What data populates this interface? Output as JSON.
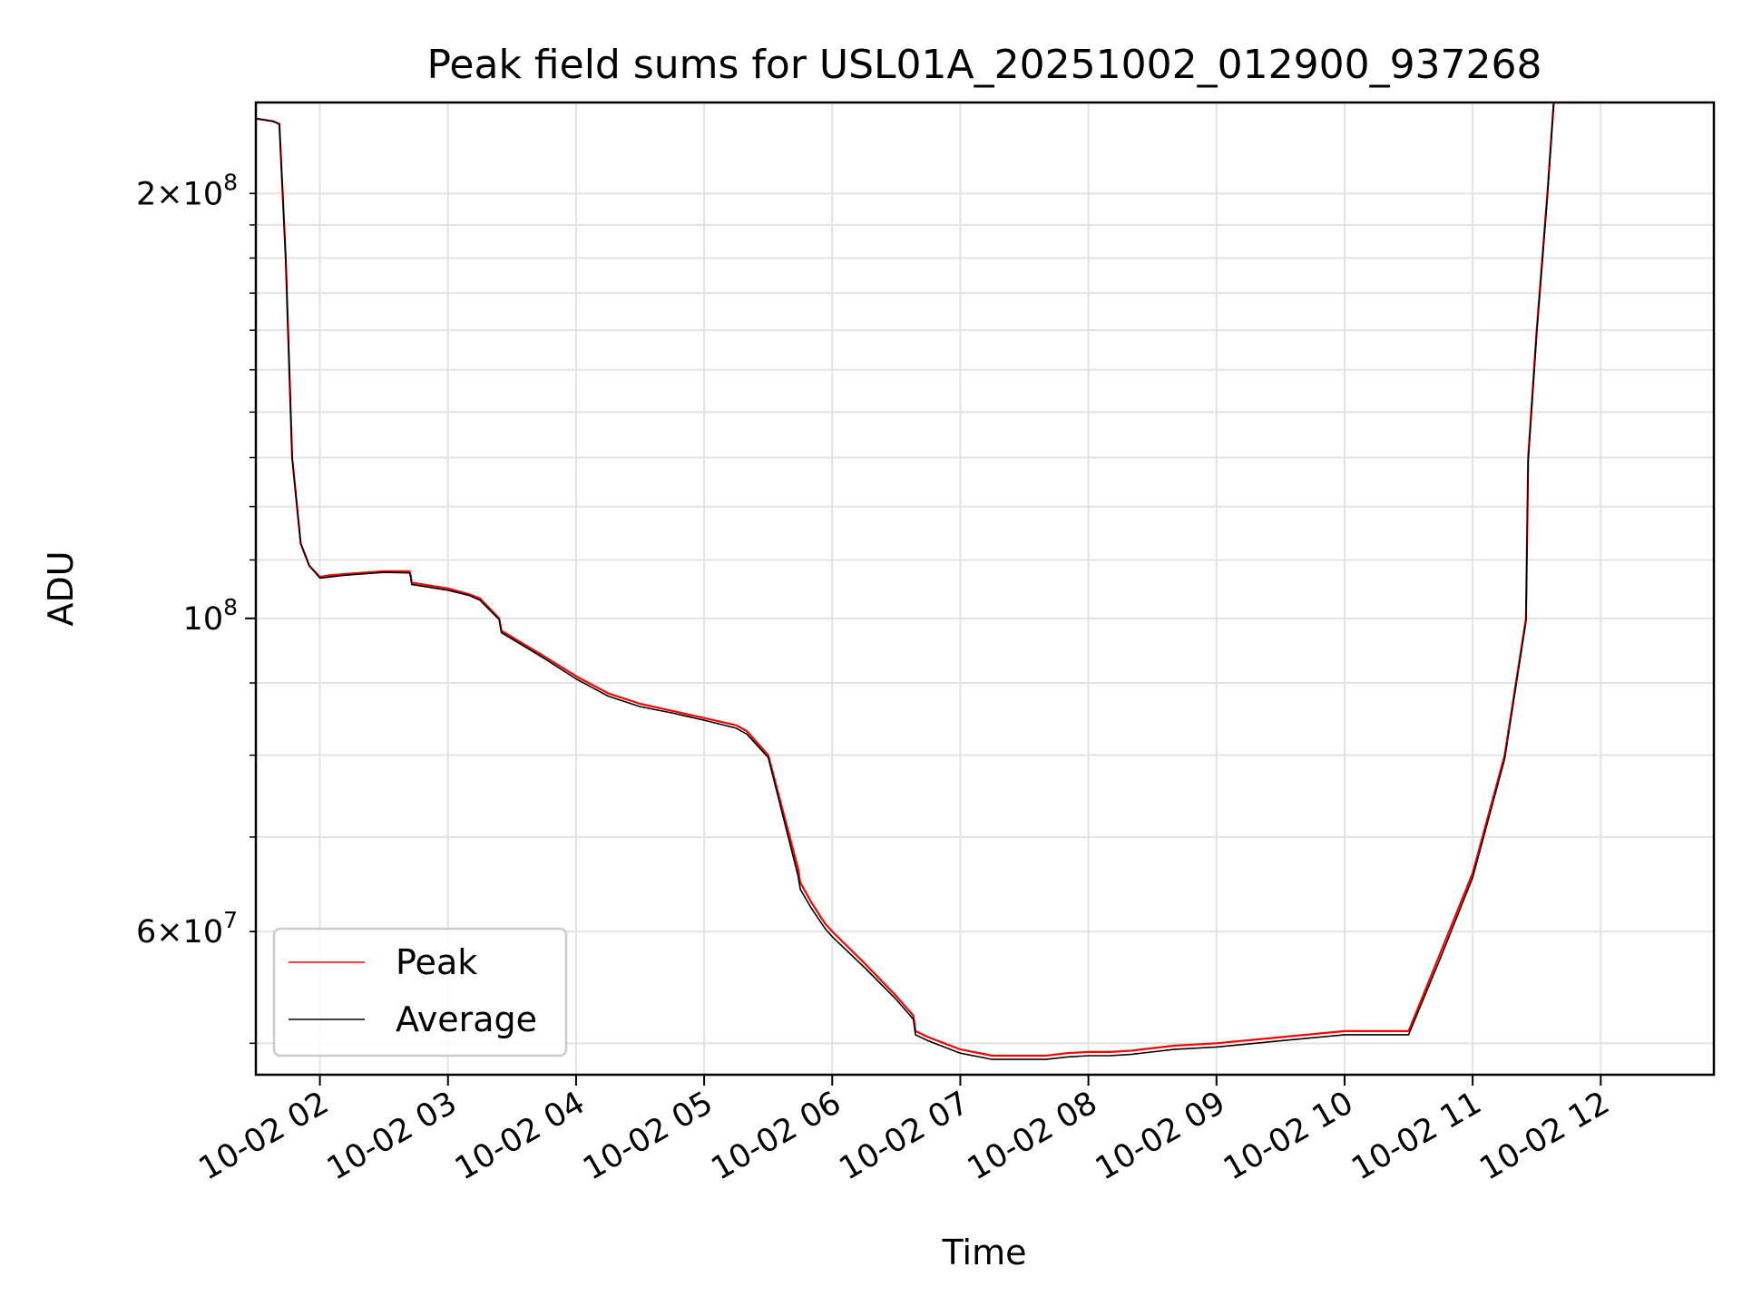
{
  "chart_data": {
    "type": "line",
    "title": "Peak field sums for USL01A_20251002_012900_937268",
    "xlabel": "Time",
    "ylabel": "ADU",
    "xlim": [
      "2025-10-02T01:30:00",
      "2025-10-02T12:53:00"
    ],
    "ylim": [
      47500000,
      232000000
    ],
    "yscale": "log",
    "grid": true,
    "legend": "lower-left",
    "x_ticks": [
      "10-02 02",
      "10-02 03",
      "10-02 04",
      "10-02 05",
      "10-02 06",
      "10-02 07",
      "10-02 08",
      "10-02 09",
      "10-02 10",
      "10-02 11",
      "10-02 12"
    ],
    "y_ticks_major": [
      {
        "value": 100000000,
        "base": "10",
        "exp": "8",
        "mult": ""
      }
    ],
    "y_ticks_minor": [
      {
        "value": 60000000,
        "base": "10",
        "exp": "7",
        "mult": "6"
      },
      {
        "value": 200000000,
        "base": "10",
        "exp": "8",
        "mult": "2"
      }
    ],
    "series": [
      {
        "name": "Peak",
        "color": "#ff0000",
        "x": [
          "2025-10-02T01:30:00",
          "2025-10-02T01:38:00",
          "2025-10-02T01:41:00",
          "2025-10-02T01:44:00",
          "2025-10-02T01:47:00",
          "2025-10-02T01:51:00",
          "2025-10-02T01:55:00",
          "2025-10-02T02:00:00",
          "2025-10-02T02:05:00",
          "2025-10-02T02:12:00",
          "2025-10-02T02:30:00",
          "2025-10-02T02:42:00",
          "2025-10-02T02:42:30",
          "2025-10-02T02:43:00",
          "2025-10-02T03:00:00",
          "2025-10-02T03:10:00",
          "2025-10-02T03:15:00",
          "2025-10-02T03:24:00",
          "2025-10-02T03:25:00",
          "2025-10-02T03:30:00",
          "2025-10-02T03:45:00",
          "2025-10-02T04:00:00",
          "2025-10-02T04:15:00",
          "2025-10-02T04:30:00",
          "2025-10-02T04:45:00",
          "2025-10-02T05:00:00",
          "2025-10-02T05:15:00",
          "2025-10-02T05:20:00",
          "2025-10-02T05:30:00",
          "2025-10-02T05:44:00",
          "2025-10-02T05:45:00",
          "2025-10-02T05:50:00",
          "2025-10-02T05:55:00",
          "2025-10-02T05:57:00",
          "2025-10-02T06:00:00",
          "2025-10-02T06:15:00",
          "2025-10-02T06:30:00",
          "2025-10-02T06:38:00",
          "2025-10-02T06:39:00",
          "2025-10-02T06:45:00",
          "2025-10-02T07:00:00",
          "2025-10-02T07:15:00",
          "2025-10-02T07:30:00",
          "2025-10-02T07:40:00",
          "2025-10-02T07:50:00",
          "2025-10-02T08:00:00",
          "2025-10-02T08:10:00",
          "2025-10-02T08:20:00",
          "2025-10-02T08:40:00",
          "2025-10-02T09:00:00",
          "2025-10-02T09:30:00",
          "2025-10-02T10:00:00",
          "2025-10-02T10:30:00",
          "2025-10-02T10:45:00",
          "2025-10-02T11:00:00",
          "2025-10-02T11:15:00",
          "2025-10-02T11:25:00",
          "2025-10-02T11:26:00",
          "2025-10-02T11:30:00",
          "2025-10-02T11:35:00",
          "2025-10-02T11:38:00",
          "2025-10-02T11:41:00",
          "2025-10-02T11:44:00",
          "2025-10-02T11:47:00",
          "2025-10-02T11:50:00",
          "2025-10-02T11:51:00"
        ],
        "y": [
          226000000,
          225000000,
          224000000,
          180000000,
          130000000,
          113000000,
          109000000,
          107000000,
          107300000,
          107500000,
          108000000,
          108000000,
          107300000,
          106000000,
          105000000,
          104000000,
          103300000,
          100000000,
          98000000,
          97000000,
          94000000,
          91000000,
          88500000,
          87000000,
          86000000,
          85000000,
          84000000,
          83200000,
          80000000,
          66500000,
          65000000,
          63000000,
          61300000,
          60700000,
          60000000,
          57000000,
          54000000,
          52300000,
          51000000,
          50500000,
          49500000,
          49000000,
          49000000,
          49000000,
          49200000,
          49300000,
          49300000,
          49400000,
          49800000,
          50000000,
          50500000,
          51000000,
          51000000,
          58000000,
          66000000,
          80000000,
          100000000,
          130000000,
          160000000,
          200000000,
          232000000,
          232000000,
          232000000,
          232000000,
          232000000,
          232000000
        ]
      },
      {
        "name": "Average",
        "color": "#000000",
        "x": [
          "2025-10-02T01:30:00",
          "2025-10-02T01:38:00",
          "2025-10-02T01:41:00",
          "2025-10-02T01:44:00",
          "2025-10-02T01:47:00",
          "2025-10-02T01:51:00",
          "2025-10-02T01:55:00",
          "2025-10-02T02:00:00",
          "2025-10-02T02:05:00",
          "2025-10-02T02:12:00",
          "2025-10-02T02:30:00",
          "2025-10-02T02:42:00",
          "2025-10-02T02:42:30",
          "2025-10-02T02:43:00",
          "2025-10-02T03:00:00",
          "2025-10-02T03:10:00",
          "2025-10-02T03:15:00",
          "2025-10-02T03:24:00",
          "2025-10-02T03:25:00",
          "2025-10-02T03:30:00",
          "2025-10-02T03:45:00",
          "2025-10-02T04:00:00",
          "2025-10-02T04:15:00",
          "2025-10-02T04:30:00",
          "2025-10-02T04:45:00",
          "2025-10-02T05:00:00",
          "2025-10-02T05:15:00",
          "2025-10-02T05:20:00",
          "2025-10-02T05:30:00",
          "2025-10-02T05:44:00",
          "2025-10-02T05:45:00",
          "2025-10-02T05:50:00",
          "2025-10-02T05:55:00",
          "2025-10-02T05:57:00",
          "2025-10-02T06:00:00",
          "2025-10-02T06:15:00",
          "2025-10-02T06:30:00",
          "2025-10-02T06:38:00",
          "2025-10-02T06:39:00",
          "2025-10-02T06:45:00",
          "2025-10-02T07:00:00",
          "2025-10-02T07:15:00",
          "2025-10-02T07:30:00",
          "2025-10-02T07:40:00",
          "2025-10-02T07:50:00",
          "2025-10-02T08:00:00",
          "2025-10-02T08:10:00",
          "2025-10-02T08:20:00",
          "2025-10-02T08:40:00",
          "2025-10-02T09:00:00",
          "2025-10-02T09:30:00",
          "2025-10-02T10:00:00",
          "2025-10-02T10:30:00",
          "2025-10-02T10:45:00",
          "2025-10-02T11:00:00",
          "2025-10-02T11:15:00",
          "2025-10-02T11:25:00",
          "2025-10-02T11:26:00",
          "2025-10-02T11:30:00",
          "2025-10-02T11:35:00",
          "2025-10-02T11:38:00",
          "2025-10-02T11:41:00",
          "2025-10-02T11:44:00",
          "2025-10-02T11:47:00",
          "2025-10-02T11:50:00",
          "2025-10-02T11:51:00"
        ],
        "y": [
          226000000,
          225000000,
          224000000,
          180000000,
          130000000,
          113000000,
          109000000,
          106800000,
          107000000,
          107300000,
          107800000,
          107700000,
          107000000,
          105700000,
          104700000,
          103800000,
          103000000,
          99800000,
          97700000,
          96700000,
          93700000,
          90600000,
          88100000,
          86600000,
          85700000,
          84700000,
          83600000,
          82800000,
          79700000,
          65700000,
          64300000,
          62400000,
          60800000,
          60200000,
          59500000,
          56600000,
          53700000,
          52000000,
          50700000,
          50200000,
          49200000,
          48700000,
          48700000,
          48700000,
          48900000,
          49000000,
          49000000,
          49100000,
          49500000,
          49700000,
          50200000,
          50700000,
          50700000,
          57500000,
          65500000,
          79500000,
          99500000,
          129000000,
          159000000,
          199000000,
          232000000,
          232000000,
          232000000,
          232000000,
          232000000,
          232000000
        ]
      }
    ]
  }
}
